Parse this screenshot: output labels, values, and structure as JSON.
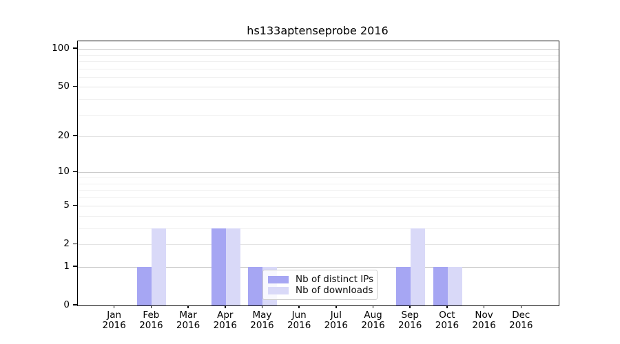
{
  "chart_data": {
    "type": "bar",
    "title": "hs133aptenseprobe 2016",
    "categories": [
      "Jan",
      "Feb",
      "Mar",
      "Apr",
      "May",
      "Jun",
      "Jul",
      "Aug",
      "Sep",
      "Oct",
      "Nov",
      "Dec"
    ],
    "x_year_label": "2016",
    "series": [
      {
        "name": "Nb of distinct IPs",
        "color": "#a6a6f3",
        "values": [
          0,
          1,
          0,
          3,
          1,
          0,
          0,
          0,
          1,
          1,
          0,
          0
        ]
      },
      {
        "name": "Nb of downloads",
        "color": "#d9d9f8",
        "values": [
          0,
          3,
          0,
          3,
          1,
          0,
          0,
          0,
          3,
          1,
          0,
          0
        ]
      }
    ],
    "y_axis": {
      "scale": "log10(1+y)",
      "ticks": [
        0,
        1,
        2,
        5,
        10,
        20,
        50,
        100
      ],
      "minor_ticks": [
        3,
        4,
        6,
        7,
        8,
        9,
        30,
        40,
        60,
        70,
        80,
        90
      ],
      "power_ticks": [
        1,
        10,
        100
      ],
      "ylim": [
        0,
        115
      ],
      "grid": true
    },
    "legend_position": "lower right of plot, inside"
  },
  "colors": {
    "background": "#ffffff",
    "frame": "#000000",
    "grid_major": "#c6c6c6",
    "grid_mid": "#e3e3e3",
    "grid_minor": "#f0f0f0",
    "legend_border": "#cccccc"
  }
}
